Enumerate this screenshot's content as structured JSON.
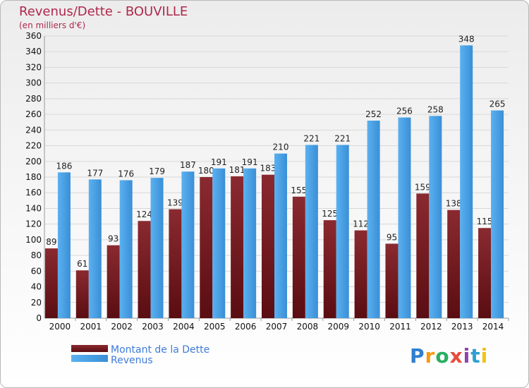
{
  "header": {
    "title": "Revenus/Dette - BOUVILLE",
    "subtitle": "(en milliers d'€)"
  },
  "logo": {
    "text": "Proxiti",
    "letters": [
      {
        "ch": "P",
        "color": "#2e7fd1"
      },
      {
        "ch": "r",
        "color": "#f39c12"
      },
      {
        "ch": "o",
        "color": "#27ae60"
      },
      {
        "ch": "x",
        "color": "#e74c3c"
      },
      {
        "ch": "i",
        "color": "#8e44ad"
      },
      {
        "ch": "t",
        "color": "#2e9fd1"
      },
      {
        "ch": "i",
        "color": "#f1c40f"
      }
    ]
  },
  "chart_data": {
    "type": "bar",
    "title": "Revenus/Dette - BOUVILLE",
    "ylabel": "(en milliers d'€)",
    "categories": [
      "2000",
      "2001",
      "2002",
      "2003",
      "2004",
      "2005",
      "2006",
      "2007",
      "2008",
      "2009",
      "2010",
      "2011",
      "2012",
      "2013",
      "2014"
    ],
    "series": [
      {
        "name": "Montant de la Dette",
        "color": "#7a1f24",
        "values": [
          89,
          61,
          93,
          124,
          139,
          180,
          181,
          183,
          155,
          125,
          112,
          95,
          159,
          138,
          115
        ]
      },
      {
        "name": "Revenus",
        "color": "#4ea6ea",
        "values": [
          186,
          177,
          176,
          179,
          187,
          191,
          191,
          210,
          221,
          221,
          252,
          256,
          258,
          348,
          265
        ]
      }
    ],
    "ylim": [
      0,
      360
    ],
    "yticks": [
      0,
      20,
      40,
      60,
      80,
      100,
      120,
      140,
      160,
      180,
      200,
      220,
      240,
      260,
      280,
      300,
      320,
      340,
      360
    ],
    "grid": true,
    "legend_position": "bottom-left"
  }
}
